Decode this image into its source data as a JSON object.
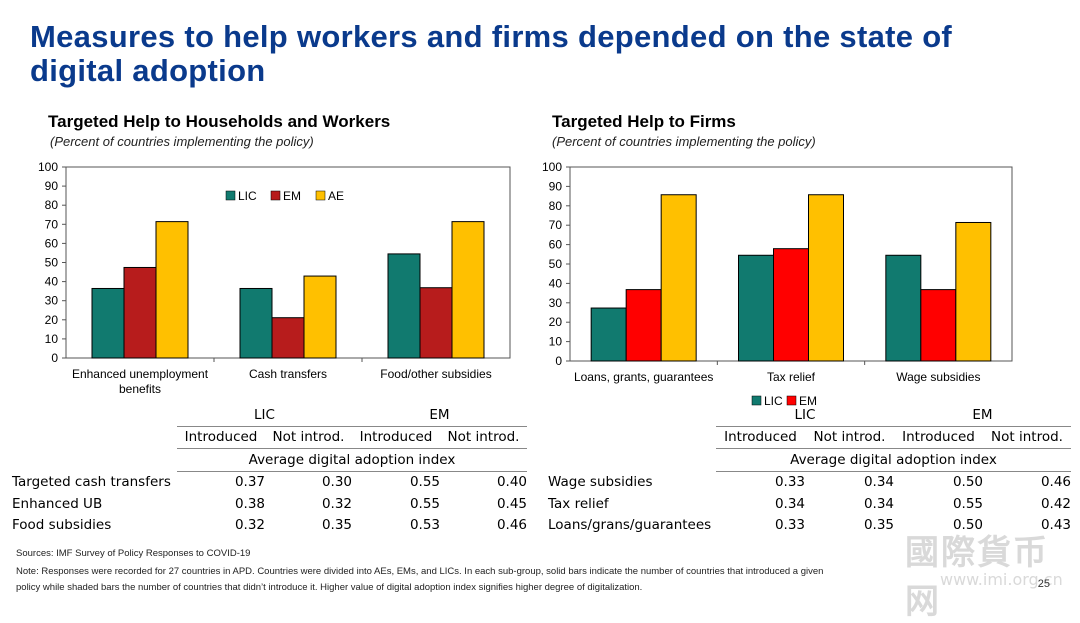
{
  "title": "Measures to help workers and firms depended on the state of digital adoption",
  "colors": {
    "LIC": "#117a6f",
    "EM_left": "#b71c1c",
    "EM_right": "#ff0000",
    "AE": "#ffc000"
  },
  "left": {
    "title": "Targeted Help to Households and Workers",
    "subtitle": "(Percent of countries implementing the policy)"
  },
  "right": {
    "title": "Targeted Help to Firms",
    "subtitle": "(Percent of countries implementing the policy)"
  },
  "chart_data": [
    {
      "type": "bar",
      "title": "Targeted Help to Households and Workers",
      "subtitle": "(Percent of countries implementing the policy)",
      "categories": [
        "Enhanced unemployment benefits",
        "Cash transfers",
        "Food/other subsidies"
      ],
      "category_lines": [
        [
          "Enhanced unemployment",
          "benefits"
        ],
        [
          "Cash transfers"
        ],
        [
          "Food/other subsidies"
        ]
      ],
      "series": [
        {
          "name": "LIC",
          "color": "#117a6f",
          "values": [
            36.4,
            36.4,
            54.5
          ]
        },
        {
          "name": "EM",
          "color": "#b71c1c",
          "values": [
            47.4,
            21.1,
            36.8
          ]
        },
        {
          "name": "AE",
          "color": "#ffc000",
          "values": [
            71.4,
            42.9,
            71.4
          ]
        }
      ],
      "ylim": [
        0,
        100
      ],
      "yticks": [
        0,
        10,
        20,
        30,
        40,
        50,
        60,
        70,
        80,
        90,
        100
      ],
      "legend": "top-left"
    },
    {
      "type": "bar",
      "title": "Targeted Help to Firms",
      "subtitle": "(Percent of countries implementing the policy)",
      "categories": [
        "Loans, grants, guarantees",
        "Tax relief",
        "Wage subsidies"
      ],
      "category_lines": [
        [
          "Loans, grants, guarantees"
        ],
        [
          "Tax relief"
        ],
        [
          "Wage subsidies"
        ]
      ],
      "series": [
        {
          "name": "LIC",
          "color": "#117a6f",
          "values": [
            27.3,
            54.5,
            54.5
          ]
        },
        {
          "name": "EM",
          "color": "#ff0000",
          "values": [
            36.8,
            57.9,
            36.8
          ]
        },
        {
          "name": "AE",
          "color": "#ffc000",
          "values": [
            85.7,
            85.7,
            71.4
          ]
        }
      ],
      "ylim": [
        0,
        100
      ],
      "yticks": [
        0,
        10,
        20,
        30,
        40,
        50,
        60,
        70,
        80,
        90,
        100
      ],
      "legend": "bottom",
      "legend_visible": [
        "LIC",
        "EM"
      ]
    }
  ],
  "left_table": {
    "groups": [
      "LIC",
      "EM"
    ],
    "subheaders": [
      "Introduced",
      "Not introd.",
      "Introduced",
      "Not introd."
    ],
    "index_label": "Average digital adoption index",
    "rows": [
      {
        "label": "Targeted cash transfers",
        "values": [
          "0.37",
          "0.30",
          "0.55",
          "0.40"
        ]
      },
      {
        "label": "Enhanced UB",
        "values": [
          "0.38",
          "0.32",
          "0.55",
          "0.45"
        ]
      },
      {
        "label": "Food subsidies",
        "values": [
          "0.32",
          "0.35",
          "0.53",
          "0.46"
        ]
      }
    ]
  },
  "right_table": {
    "groups": [
      "LIC",
      "EM"
    ],
    "subheaders": [
      "Introduced",
      "Not introd.",
      "Introduced",
      "Not introd."
    ],
    "index_label": "Average digital adoption index",
    "rows": [
      {
        "label": "Wage subsidies",
        "values": [
          "0.33",
          "0.34",
          "0.50",
          "0.46"
        ]
      },
      {
        "label": "Tax relief",
        "values": [
          "0.34",
          "0.34",
          "0.55",
          "0.42"
        ]
      },
      {
        "label": "Loans/grans/guarantees",
        "values": [
          "0.33",
          "0.35",
          "0.50",
          "0.43"
        ]
      }
    ]
  },
  "footer": {
    "sources": "Sources: IMF Survey of Policy Responses to COVID-19",
    "note1": "Note: Responses were recorded for 27 countries in APD. Countries were divided into AEs, EMs, and LICs. In each sub-group, solid bars indicate the number of countries that introduced a given",
    "note2": "policy while shaded bars the number of countries that didn’t introduce it. Higher value of digital adoption index signifies higher degree of digitalization."
  },
  "page_number": "25",
  "watermark": {
    "text": "國際貨币网",
    "url": "www.imi.org.cn"
  }
}
